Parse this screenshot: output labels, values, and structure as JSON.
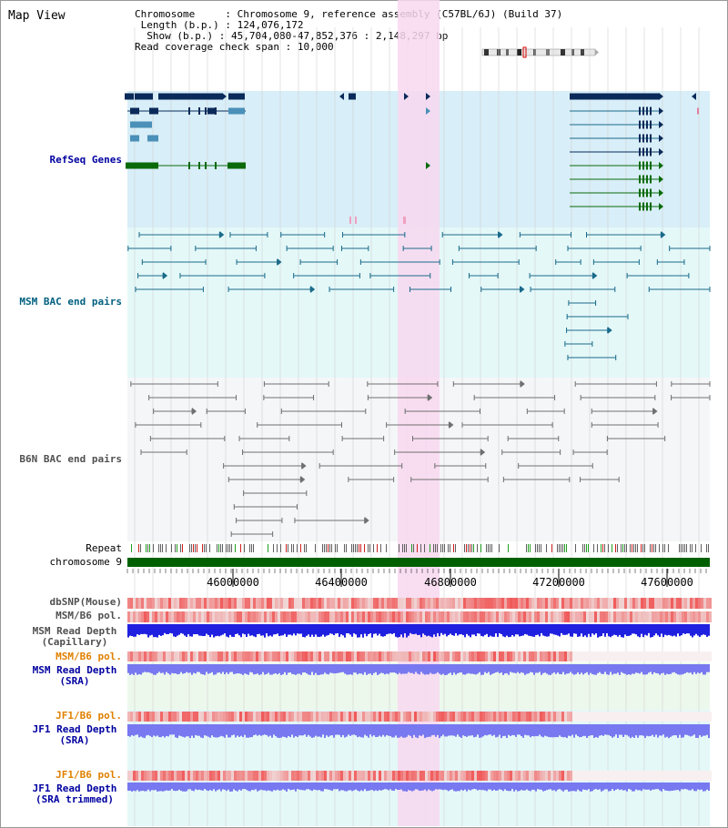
{
  "page": {
    "title": "Map View"
  },
  "info": {
    "chromosome_key": "Chromosome",
    "chromosome_val": "Chromosome 9, reference assembly (C57BL/6J) (Build 37)",
    "length_key": "Length (b.p.)",
    "length_val": "124,076,172",
    "show_key": "Show (b.p.)",
    "show_val": "45,704,080-47,852,376 : 2,148,297 bp",
    "span_key": "Read coverage check span",
    "span_val": "10,000"
  },
  "tracks": {
    "refseq": "RefSeq Genes",
    "msm_bac": "MSM BAC end pairs",
    "b6n_bac": "B6N BAC end pairs",
    "repeat": "Repeat",
    "chromosome": "chromosome 9",
    "dbsnp": "dbSNP(Mouse)",
    "msm_b6_pol": "MSM/B6 pol.",
    "msm_depth_cap_1": "MSM Read Depth",
    "msm_depth_cap_2": "(Capillary)",
    "msm_b6_pol2": "MSM/B6 pol.",
    "msm_depth_sra_1": "MSM Read Depth",
    "msm_depth_sra_2": "(SRA)",
    "jf1_pol": "JF1/B6 pol.",
    "jf1_depth_1": "JF1 Read Depth",
    "jf1_depth_2": "(SRA)",
    "jf1_pol2": "JF1/B6 pol.",
    "jf1_trim_1": "JF1 Read Depth",
    "jf1_trim_2": "(SRA trimmed)"
  },
  "axis": {
    "ticks": [
      "46000000",
      "46400000",
      "46800000",
      "47200000",
      "47600000"
    ]
  },
  "colors": {
    "refseq_bg": "#d8eef8",
    "msm_bg": "#e4f8f8",
    "b6n_bg": "#f4f6f8",
    "highlight": "#f8d8f0",
    "gene_dark": "#0a2a5a",
    "gene_light": "#4a90b8",
    "gene_green": "#0a6a0a",
    "bac_msm": "#1a6a8a",
    "bac_b6n": "#707070",
    "chrom_bar": "#006000",
    "depth_blue": "#2020e0",
    "depth_lav": "#7878f0",
    "pol_red": "#f06060",
    "label_blue": "#0000a0",
    "label_teal": "#006080",
    "label_gray": "#505050",
    "label_orange": "#e08000"
  }
}
